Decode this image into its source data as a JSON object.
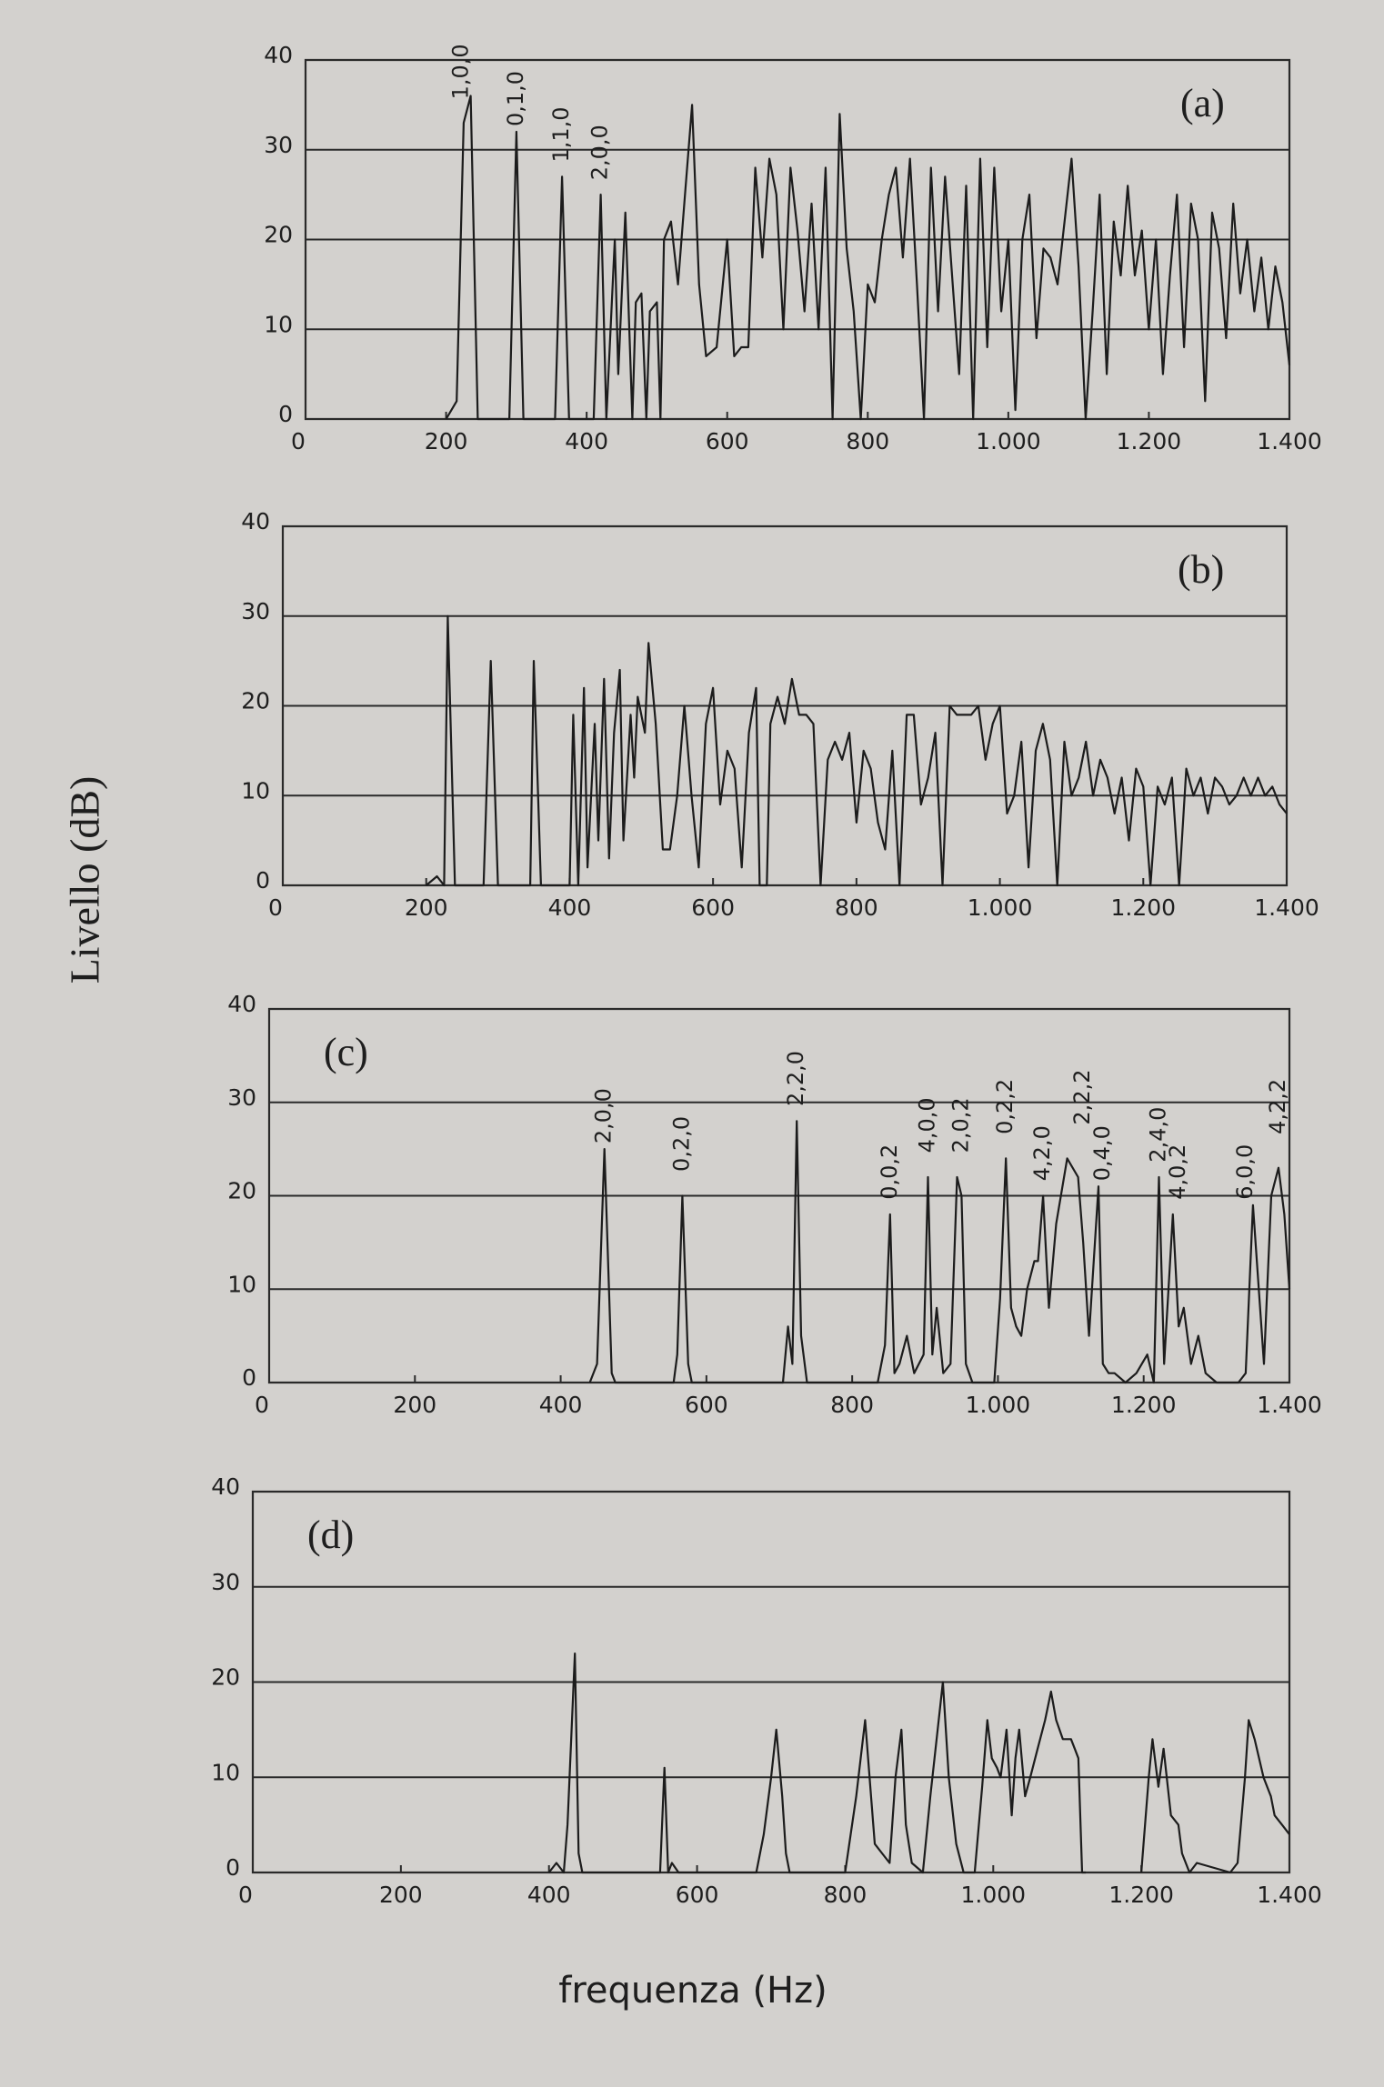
{
  "ylabel": "Livello (dB)",
  "xlabel": "frequenza (Hz)",
  "chart_data": [
    {
      "type": "line",
      "title": "(a)",
      "color": "#1c1c1c",
      "grid": true,
      "xlim": [
        0,
        1400
      ],
      "ylim": [
        0,
        40
      ],
      "xticks": [
        0,
        200,
        400,
        600,
        800,
        {
          "value": 1000,
          "label": "1.000"
        },
        {
          "value": 1200,
          "label": "1.200"
        },
        {
          "value": 1400,
          "label": "1.400"
        }
      ],
      "yticks": [
        0,
        10,
        20,
        30,
        40
      ],
      "x": [
        200,
        215,
        225,
        235,
        245,
        290,
        300,
        310,
        355,
        365,
        375,
        410,
        420,
        428,
        440,
        445,
        455,
        465,
        470,
        478,
        485,
        490,
        500,
        505,
        510,
        520,
        530,
        540,
        550,
        560,
        570,
        585,
        600,
        610,
        620,
        630,
        640,
        650,
        660,
        670,
        680,
        690,
        700,
        710,
        720,
        730,
        740,
        750,
        760,
        770,
        780,
        790,
        800,
        810,
        820,
        830,
        840,
        850,
        860,
        870,
        880,
        890,
        900,
        910,
        920,
        930,
        940,
        950,
        960,
        970,
        980,
        990,
        1000,
        1010,
        1020,
        1030,
        1040,
        1050,
        1060,
        1070,
        1080,
        1090,
        1100,
        1110,
        1120,
        1130,
        1140,
        1150,
        1160,
        1170,
        1180,
        1190,
        1200,
        1210,
        1220,
        1230,
        1240,
        1250,
        1260,
        1270,
        1280,
        1290,
        1300,
        1310,
        1320,
        1330,
        1340,
        1350,
        1360,
        1370,
        1380,
        1390,
        1400
      ],
      "values": [
        0,
        2,
        33,
        36,
        0,
        0,
        32,
        0,
        0,
        27,
        0,
        0,
        25,
        0,
        20,
        5,
        23,
        0,
        13,
        14,
        0,
        12,
        13,
        0,
        20,
        22,
        15,
        25,
        35,
        15,
        7,
        8,
        20,
        7,
        8,
        8,
        28,
        18,
        29,
        25,
        10,
        28,
        21,
        12,
        24,
        10,
        28,
        0,
        34,
        19,
        12,
        0,
        15,
        13,
        20,
        25,
        28,
        18,
        29,
        15,
        0,
        28,
        12,
        27,
        16,
        5,
        26,
        0,
        29,
        8,
        28,
        12,
        20,
        1,
        20,
        25,
        9,
        19,
        18,
        15,
        22,
        29,
        17,
        0,
        12,
        25,
        5,
        22,
        16,
        26,
        16,
        21,
        10,
        20,
        5,
        16,
        25,
        8,
        24,
        20,
        2,
        23,
        19,
        9,
        24,
        14,
        20,
        12,
        18,
        10,
        17,
        13,
        6
      ],
      "annotations": [
        {
          "text": "1,0,0",
          "x": 222,
          "y": 35
        },
        {
          "text": "0,1,0",
          "x": 300,
          "y": 32
        },
        {
          "text": "1,1,0",
          "x": 365,
          "y": 28
        },
        {
          "text": "2,0,0",
          "x": 420,
          "y": 26
        }
      ]
    },
    {
      "type": "line",
      "title": "(b)",
      "color": "#1c1c1c",
      "grid": true,
      "xlim": [
        0,
        1400
      ],
      "ylim": [
        0,
        40
      ],
      "xticks": [
        0,
        200,
        400,
        600,
        800,
        {
          "value": 1000,
          "label": "1.000"
        },
        {
          "value": 1200,
          "label": "1.200"
        },
        {
          "value": 1400,
          "label": "1.400"
        }
      ],
      "yticks": [
        0,
        10,
        20,
        30,
        40
      ],
      "x": [
        200,
        215,
        225,
        230,
        240,
        280,
        290,
        300,
        345,
        350,
        360,
        400,
        405,
        412,
        420,
        425,
        435,
        440,
        448,
        455,
        462,
        470,
        475,
        485,
        490,
        495,
        505,
        510,
        520,
        530,
        540,
        550,
        560,
        570,
        580,
        590,
        600,
        610,
        620,
        630,
        640,
        650,
        660,
        665,
        675,
        680,
        690,
        700,
        710,
        720,
        730,
        740,
        750,
        760,
        770,
        780,
        790,
        800,
        810,
        820,
        830,
        840,
        850,
        860,
        870,
        880,
        890,
        900,
        910,
        920,
        930,
        940,
        950,
        960,
        970,
        980,
        990,
        1000,
        1010,
        1020,
        1030,
        1040,
        1050,
        1060,
        1070,
        1080,
        1090,
        1100,
        1110,
        1120,
        1130,
        1140,
        1150,
        1160,
        1170,
        1180,
        1190,
        1200,
        1210,
        1220,
        1230,
        1240,
        1250,
        1260,
        1270,
        1280,
        1290,
        1300,
        1310,
        1320,
        1330,
        1340,
        1350,
        1360,
        1370,
        1380,
        1390,
        1400
      ],
      "values": [
        0,
        1,
        0,
        30,
        0,
        0,
        25,
        0,
        0,
        25,
        0,
        0,
        19,
        0,
        22,
        2,
        18,
        5,
        23,
        3,
        17,
        24,
        5,
        19,
        12,
        21,
        17,
        27,
        18,
        4,
        4,
        10,
        20,
        10,
        2,
        18,
        22,
        9,
        15,
        13,
        2,
        17,
        22,
        0,
        0,
        18,
        21,
        18,
        23,
        19,
        19,
        18,
        0,
        14,
        16,
        14,
        17,
        7,
        15,
        13,
        7,
        4,
        15,
        0,
        19,
        19,
        9,
        12,
        17,
        0,
        20,
        19,
        19,
        19,
        20,
        14,
        18,
        20,
        8,
        10,
        16,
        2,
        15,
        18,
        14,
        0,
        16,
        10,
        12,
        16,
        10,
        14,
        12,
        8,
        12,
        5,
        13,
        11,
        0,
        11,
        9,
        12,
        0,
        13,
        10,
        12,
        8,
        12,
        11,
        9,
        10,
        12,
        10,
        12,
        10,
        11,
        9,
        8
      ]
    },
    {
      "type": "line",
      "title": "(c)",
      "color": "#1c1c1c",
      "grid": true,
      "xlim": [
        0,
        1400
      ],
      "ylim": [
        0,
        40
      ],
      "xticks": [
        0,
        200,
        400,
        600,
        800,
        {
          "value": 1000,
          "label": "1.000"
        },
        {
          "value": 1200,
          "label": "1.200"
        },
        {
          "value": 1400,
          "label": "1.400"
        }
      ],
      "yticks": [
        0,
        10,
        20,
        30,
        40
      ],
      "x": [
        440,
        450,
        460,
        470,
        475,
        555,
        560,
        567,
        575,
        580,
        705,
        712,
        718,
        724,
        730,
        738,
        835,
        845,
        852,
        858,
        865,
        875,
        885,
        898,
        904,
        910,
        916,
        925,
        935,
        944,
        950,
        956,
        965,
        995,
        1003,
        1011,
        1018,
        1025,
        1032,
        1040,
        1050,
        1055,
        1062,
        1070,
        1080,
        1095,
        1110,
        1117,
        1125,
        1138,
        1144,
        1152,
        1160,
        1175,
        1190,
        1205,
        1214,
        1221,
        1228,
        1240,
        1248,
        1255,
        1265,
        1275,
        1285,
        1300,
        1330,
        1340,
        1350,
        1365,
        1375,
        1385,
        1393,
        1400
      ],
      "values": [
        0,
        2,
        25,
        1,
        0,
        0,
        3,
        20,
        2,
        0,
        0,
        6,
        2,
        28,
        5,
        0,
        0,
        4,
        18,
        1,
        2,
        5,
        1,
        3,
        22,
        3,
        8,
        1,
        2,
        22,
        20,
        2,
        0,
        0,
        9,
        24,
        8,
        6,
        5,
        10,
        13,
        13,
        20,
        8,
        17,
        24,
        22,
        15,
        5,
        21,
        2,
        1,
        1,
        0,
        1,
        3,
        0,
        22,
        2,
        18,
        6,
        8,
        2,
        5,
        1,
        0,
        0,
        1,
        19,
        2,
        20,
        23,
        18,
        10
      ],
      "annotations": [
        {
          "text": "2,0,0",
          "x": 460,
          "y": 25
        },
        {
          "text": "0,2,0",
          "x": 567,
          "y": 22
        },
        {
          "text": "2,2,0",
          "x": 724,
          "y": 29
        },
        {
          "text": "0,0,2",
          "x": 852,
          "y": 19
        },
        {
          "text": "4,0,0",
          "x": 904,
          "y": 24
        },
        {
          "text": "2,0,2",
          "x": 950,
          "y": 24
        },
        {
          "text": "0,2,2",
          "x": 1011,
          "y": 26
        },
        {
          "text": "4,2,0",
          "x": 1062,
          "y": 21
        },
        {
          "text": "2,2,2",
          "x": 1117,
          "y": 27
        },
        {
          "text": "0,4,0",
          "x": 1144,
          "y": 21
        },
        {
          "text": "2,4,0",
          "x": 1221,
          "y": 23
        },
        {
          "text": "4,0,2",
          "x": 1248,
          "y": 19
        },
        {
          "text": "6,0,0",
          "x": 1340,
          "y": 19
        },
        {
          "text": "4,2,2",
          "x": 1385,
          "y": 26
        }
      ]
    },
    {
      "type": "line",
      "title": "(d)",
      "color": "#1c1c1c",
      "grid": true,
      "xlim": [
        0,
        1400
      ],
      "ylim": [
        0,
        40
      ],
      "xticks": [
        0,
        200,
        400,
        600,
        800,
        {
          "value": 1000,
          "label": "1.000"
        },
        {
          "value": 1200,
          "label": "1.200"
        },
        {
          "value": 1400,
          "label": "1.400"
        }
      ],
      "yticks": [
        0,
        10,
        20,
        30,
        40
      ],
      "x": [
        400,
        410,
        420,
        425,
        435,
        440,
        445,
        550,
        556,
        561,
        566,
        575,
        680,
        690,
        700,
        707,
        715,
        720,
        725,
        800,
        815,
        827,
        835,
        840,
        850,
        860,
        868,
        876,
        882,
        890,
        905,
        915,
        932,
        940,
        950,
        960,
        975,
        985,
        992,
        998,
        1005,
        1010,
        1018,
        1025,
        1030,
        1035,
        1043,
        1050,
        1060,
        1070,
        1078,
        1085,
        1094,
        1105,
        1110,
        1115,
        1120,
        1125,
        1160,
        1200,
        1210,
        1215,
        1223,
        1230,
        1240,
        1250,
        1255,
        1265,
        1275,
        1320,
        1330,
        1340,
        1345,
        1353,
        1365,
        1375,
        1380,
        1390,
        1400
      ],
      "values": [
        0,
        1,
        0,
        5,
        23,
        2,
        0,
        0,
        11,
        0,
        1,
        0,
        0,
        4,
        10,
        15,
        8,
        2,
        0,
        0,
        8,
        16,
        8,
        3,
        2,
        1,
        10,
        15,
        5,
        1,
        0,
        8,
        20,
        10,
        3,
        0,
        0,
        9,
        16,
        12,
        11,
        10,
        15,
        6,
        12,
        15,
        8,
        10,
        13,
        16,
        19,
        16,
        14,
        14,
        13,
        12,
        0,
        0,
        null,
        0,
        10,
        14,
        9,
        13,
        6,
        5,
        2,
        0,
        1,
        0,
        1,
        10,
        16,
        14,
        10,
        8,
        6,
        5,
        4
      ]
    }
  ]
}
